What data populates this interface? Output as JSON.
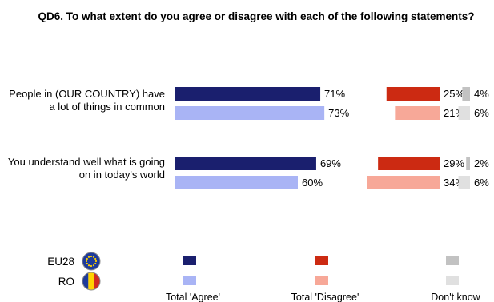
{
  "chart_data": {
    "type": "bar",
    "title": "QD6. To what extent do you agree or disagree with each of the following statements?",
    "categories": [
      "People in (OUR COUNTRY) have a lot of things in common",
      "You understand well what is going on in today's world"
    ],
    "groups": [
      "EU28",
      "RO"
    ],
    "series": [
      {
        "name": "Total 'Agree'",
        "EU28": [
          71,
          69
        ],
        "RO": [
          73,
          60
        ],
        "colors": {
          "EU28": "#1a1f6e",
          "RO": "#a9b4f5"
        }
      },
      {
        "name": "Total 'Disagree'",
        "EU28": [
          25,
          29
        ],
        "RO": [
          21,
          34
        ],
        "colors": {
          "EU28": "#cc2a12",
          "RO": "#f7a898"
        }
      },
      {
        "name": "Don't know",
        "EU28": [
          4,
          2
        ],
        "RO": [
          6,
          6
        ],
        "colors": {
          "EU28": "#c2c2c2",
          "RO": "#e0e0e0"
        }
      }
    ],
    "unit": "%"
  },
  "legend": {
    "countries": [
      {
        "label": "EU28",
        "icon": "eu-flag-icon"
      },
      {
        "label": "RO",
        "icon": "romania-flag-icon"
      }
    ],
    "series_labels": [
      "Total 'Agree'",
      "Total 'Disagree'",
      "Don't know"
    ]
  }
}
